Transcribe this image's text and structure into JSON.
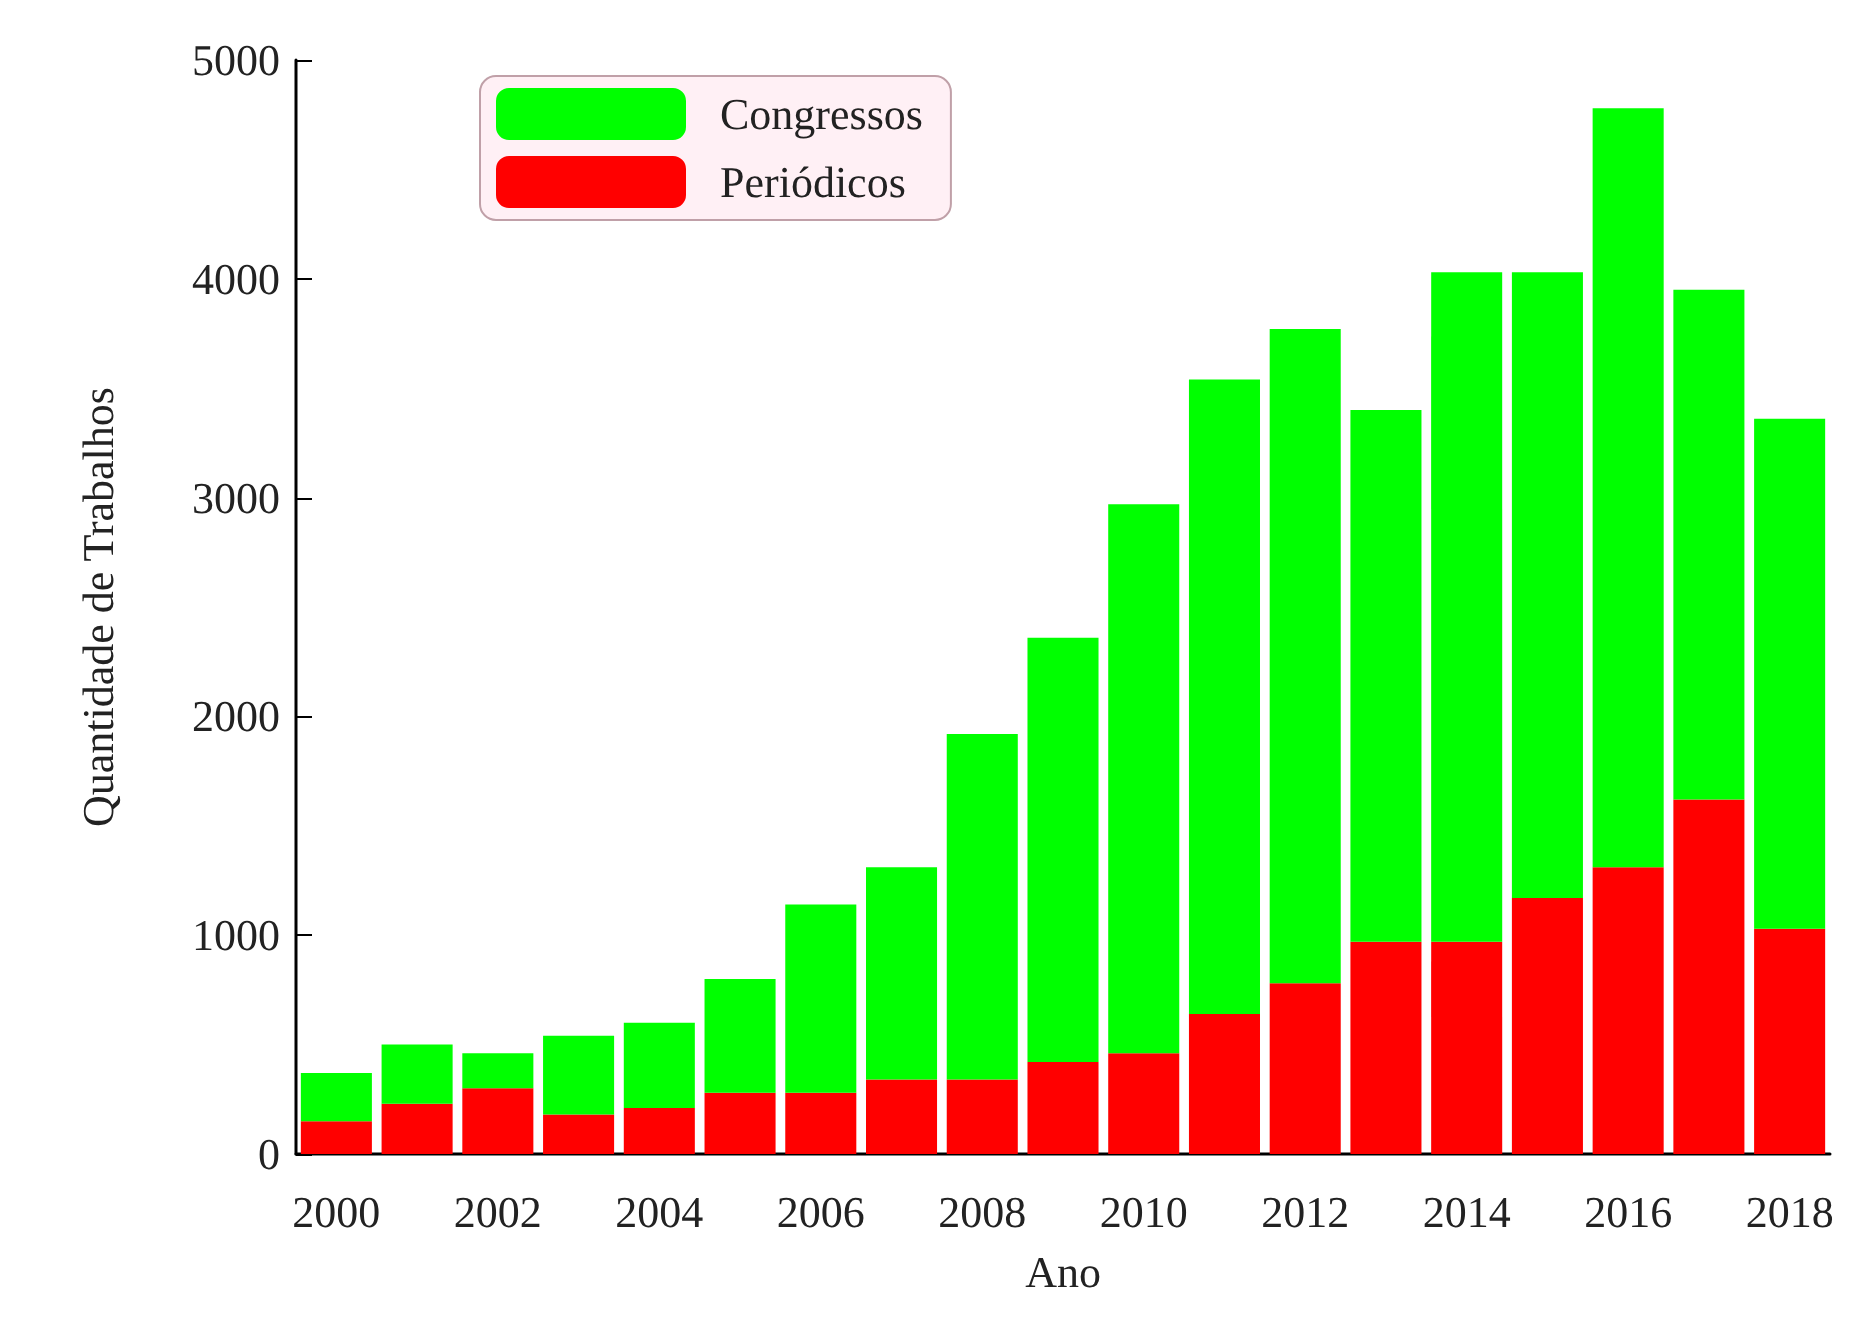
{
  "chart_data": {
    "type": "bar",
    "xlabel": "Ano",
    "ylabel": "Quantidade de Trabalhos",
    "categories": [
      "2000",
      null,
      "2002",
      null,
      "2004",
      null,
      "2006",
      null,
      "2008",
      null,
      "2010",
      null,
      "2012",
      null,
      "2014",
      null,
      "2016",
      null,
      "2018"
    ],
    "series": [
      {
        "name": "Periódicos",
        "color": "#ff0000",
        "values": [
          150,
          230,
          300,
          180,
          210,
          280,
          280,
          340,
          340,
          420,
          460,
          640,
          780,
          970,
          970,
          1170,
          1310,
          1620,
          1030
        ]
      },
      {
        "name": "Congressos",
        "color": "#00ff00",
        "values": [
          220,
          270,
          160,
          360,
          390,
          520,
          860,
          970,
          1580,
          1940,
          2510,
          2900,
          2990,
          2430,
          3060,
          2860,
          3470,
          2330,
          2330
        ]
      }
    ],
    "stacked": true,
    "ylim": [
      0,
      5000
    ],
    "yticks": [
      0,
      1000,
      2000,
      3000,
      4000,
      5000
    ],
    "grid": false,
    "legend": "top left"
  }
}
